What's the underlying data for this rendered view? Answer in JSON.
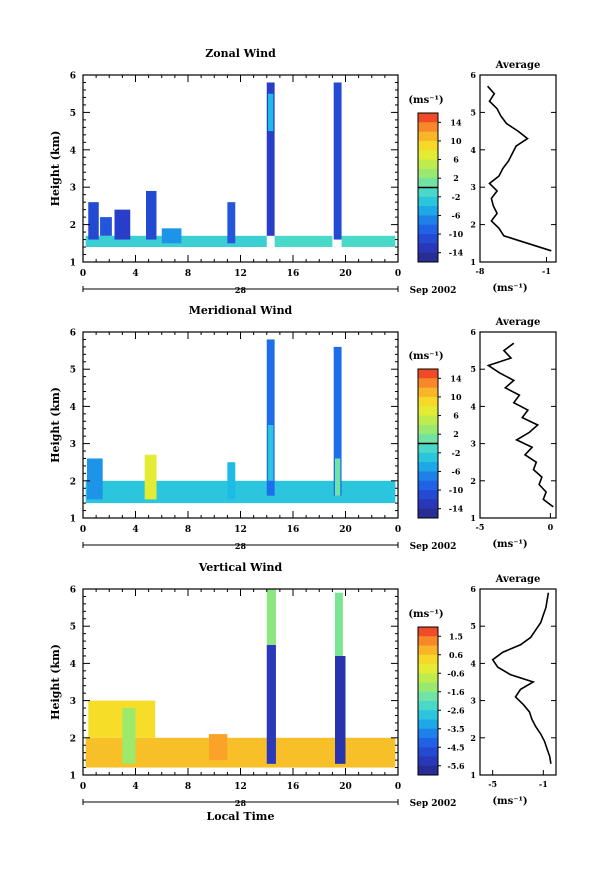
{
  "figure": {
    "date_label": "Sep 2002",
    "day_label": "28",
    "xlabel_bottom": "Local Time",
    "xticks": [
      "0",
      "4",
      "8",
      "12",
      "16",
      "20",
      "0"
    ],
    "ylabel": "Height (km)",
    "colorbar_unit": "(ms⁻¹)",
    "profile_unit": "(ms⁻¹)",
    "profile_title": "Average"
  },
  "chart_data": [
    {
      "type": "heatmap",
      "title": "Zonal Wind",
      "xlabel": "",
      "ylabel": "Height (km)",
      "xlim": [
        0,
        24
      ],
      "ylim": [
        1,
        6
      ],
      "yticks": [
        1,
        2,
        3,
        4,
        5,
        6
      ],
      "colorbar": {
        "ticks": [
          "14",
          "10",
          "6",
          "2",
          "-2",
          "-6",
          "-10",
          "-14"
        ],
        "min": -16,
        "max": 16,
        "zero_line": 0
      },
      "grid": false,
      "patches": [
        {
          "t0": 0.2,
          "t1": 14.0,
          "h0": 1.4,
          "h1": 1.7,
          "value": -2
        },
        {
          "t0": 0.4,
          "t1": 1.2,
          "h0": 1.6,
          "h1": 2.6,
          "value": -11
        },
        {
          "t0": 1.3,
          "t1": 2.2,
          "h0": 1.7,
          "h1": 2.2,
          "value": -10
        },
        {
          "t0": 2.4,
          "t1": 3.6,
          "h0": 1.6,
          "h1": 2.4,
          "value": -12
        },
        {
          "t0": 4.8,
          "t1": 5.6,
          "h0": 1.6,
          "h1": 2.9,
          "value": -11
        },
        {
          "t0": 6.0,
          "t1": 7.5,
          "h0": 1.5,
          "h1": 1.9,
          "value": -6
        },
        {
          "t0": 11.0,
          "t1": 11.6,
          "h0": 1.5,
          "h1": 2.6,
          "value": -10
        },
        {
          "t0": 14.0,
          "t1": 14.6,
          "h0": 1.7,
          "h1": 5.8,
          "value": -12
        },
        {
          "t0": 14.1,
          "t1": 14.5,
          "h0": 4.5,
          "h1": 5.5,
          "value": -4
        },
        {
          "t0": 14.6,
          "t1": 19.0,
          "h0": 1.4,
          "h1": 1.7,
          "value": -1
        },
        {
          "t0": 19.1,
          "t1": 19.7,
          "h0": 1.6,
          "h1": 5.8,
          "value": -11
        },
        {
          "t0": 19.7,
          "t1": 23.8,
          "h0": 1.4,
          "h1": 1.7,
          "value": -1
        }
      ],
      "profile": {
        "title": "Average",
        "xlabel": "(ms⁻¹)",
        "xlim": [
          -8,
          0
        ],
        "xticks": [
          "-8",
          "-1"
        ],
        "heights": [
          1.3,
          1.5,
          1.7,
          1.9,
          2.1,
          2.3,
          2.5,
          2.7,
          2.9,
          3.1,
          3.3,
          3.5,
          3.7,
          3.9,
          4.1,
          4.3,
          4.5,
          4.7,
          4.9,
          5.1,
          5.3,
          5.5,
          5.7
        ],
        "values": [
          -0.5,
          -3.0,
          -5.5,
          -6.0,
          -6.8,
          -6.2,
          -6.6,
          -6.8,
          -6.2,
          -7.0,
          -6.0,
          -5.6,
          -5.0,
          -4.6,
          -4.2,
          -3.0,
          -4.0,
          -5.2,
          -5.8,
          -6.2,
          -7.0,
          -6.5,
          -7.2
        ]
      }
    },
    {
      "type": "heatmap",
      "title": "Meridional Wind",
      "xlabel": "",
      "ylabel": "Height (km)",
      "xlim": [
        0,
        24
      ],
      "ylim": [
        1,
        6
      ],
      "yticks": [
        1,
        2,
        3,
        4,
        5,
        6
      ],
      "colorbar": {
        "ticks": [
          "14",
          "10",
          "6",
          "2",
          "-2",
          "-6",
          "-10",
          "-14"
        ],
        "min": -16,
        "max": 16,
        "zero_line": 0
      },
      "grid": false,
      "patches": [
        {
          "t0": 0.2,
          "t1": 23.8,
          "h0": 1.4,
          "h1": 2.0,
          "value": -3
        },
        {
          "t0": 0.3,
          "t1": 1.5,
          "h0": 1.5,
          "h1": 2.6,
          "value": -6
        },
        {
          "t0": 4.7,
          "t1": 5.6,
          "h0": 1.5,
          "h1": 2.7,
          "value": 7
        },
        {
          "t0": 11.0,
          "t1": 11.6,
          "h0": 1.5,
          "h1": 2.5,
          "value": -4
        },
        {
          "t0": 14.0,
          "t1": 14.6,
          "h0": 1.6,
          "h1": 5.8,
          "value": -8
        },
        {
          "t0": 14.1,
          "t1": 14.5,
          "h0": 2.0,
          "h1": 3.5,
          "value": -3
        },
        {
          "t0": 19.1,
          "t1": 19.7,
          "h0": 1.6,
          "h1": 5.6,
          "value": -8
        },
        {
          "t0": 19.2,
          "t1": 19.6,
          "h0": 1.6,
          "h1": 2.6,
          "value": 1
        }
      ],
      "profile": {
        "title": "Average",
        "xlabel": "(ms⁻¹)",
        "xlim": [
          -5,
          0.4
        ],
        "xticks": [
          "-5",
          "0"
        ],
        "heights": [
          1.3,
          1.5,
          1.7,
          1.9,
          2.1,
          2.3,
          2.5,
          2.7,
          2.9,
          3.1,
          3.3,
          3.5,
          3.7,
          3.9,
          4.1,
          4.3,
          4.5,
          4.7,
          4.9,
          5.1,
          5.3,
          5.5,
          5.7
        ],
        "values": [
          0.2,
          -0.5,
          -0.3,
          -0.8,
          -0.6,
          -1.2,
          -1.0,
          -1.8,
          -1.3,
          -2.4,
          -1.5,
          -0.9,
          -2.0,
          -1.6,
          -2.6,
          -2.2,
          -3.2,
          -2.6,
          -3.6,
          -4.4,
          -2.8,
          -3.3,
          -2.6
        ]
      }
    },
    {
      "type": "heatmap",
      "title": "Vertical Wind",
      "xlabel": "Local Time",
      "ylabel": "Height (km)",
      "xlim": [
        0,
        24
      ],
      "ylim": [
        1,
        6
      ],
      "yticks": [
        1,
        2,
        3,
        4,
        5,
        6
      ],
      "colorbar": {
        "ticks": [
          "1.5",
          "0.6",
          "-0.6",
          "-1.6",
          "-2.6",
          "-3.5",
          "-4.5",
          "-5.6"
        ],
        "min": -6.0,
        "max": 2.0,
        "zero_line": null
      },
      "grid": false,
      "patches": [
        {
          "t0": 0.2,
          "t1": 23.8,
          "h0": 1.2,
          "h1": 2.0,
          "value": 0.6
        },
        {
          "t0": 0.4,
          "t1": 5.5,
          "h0": 2.0,
          "h1": 3.0,
          "value": 0.2
        },
        {
          "t0": 3.0,
          "t1": 4.0,
          "h0": 1.3,
          "h1": 2.8,
          "value": -1.2
        },
        {
          "t0": 9.6,
          "t1": 11.0,
          "h0": 1.4,
          "h1": 2.1,
          "value": 1.0
        },
        {
          "t0": 14.0,
          "t1": 14.7,
          "h0": 1.3,
          "h1": 4.5,
          "value": -5.2
        },
        {
          "t0": 14.0,
          "t1": 14.7,
          "h0": 4.5,
          "h1": 6.0,
          "value": -1.4
        },
        {
          "t0": 19.2,
          "t1": 20.0,
          "h0": 1.3,
          "h1": 4.2,
          "value": -5.4
        },
        {
          "t0": 19.2,
          "t1": 19.8,
          "h0": 4.2,
          "h1": 5.9,
          "value": -1.6
        }
      ],
      "profile": {
        "title": "Average",
        "xlabel": "(ms⁻¹)",
        "xlim": [
          -6,
          0
        ],
        "xticks": [
          "-5",
          "-1"
        ],
        "heights": [
          1.3,
          1.5,
          1.7,
          1.9,
          2.1,
          2.3,
          2.5,
          2.7,
          2.9,
          3.1,
          3.3,
          3.5,
          3.7,
          3.9,
          4.1,
          4.3,
          4.5,
          4.7,
          4.9,
          5.1,
          5.3,
          5.5,
          5.7,
          5.9
        ],
        "values": [
          -0.4,
          -0.5,
          -0.7,
          -0.9,
          -1.2,
          -1.6,
          -1.9,
          -2.1,
          -2.6,
          -3.2,
          -2.8,
          -1.8,
          -3.6,
          -4.6,
          -5.0,
          -4.2,
          -2.8,
          -2.0,
          -1.6,
          -1.2,
          -1.0,
          -0.8,
          -0.7,
          -0.6
        ]
      }
    }
  ]
}
